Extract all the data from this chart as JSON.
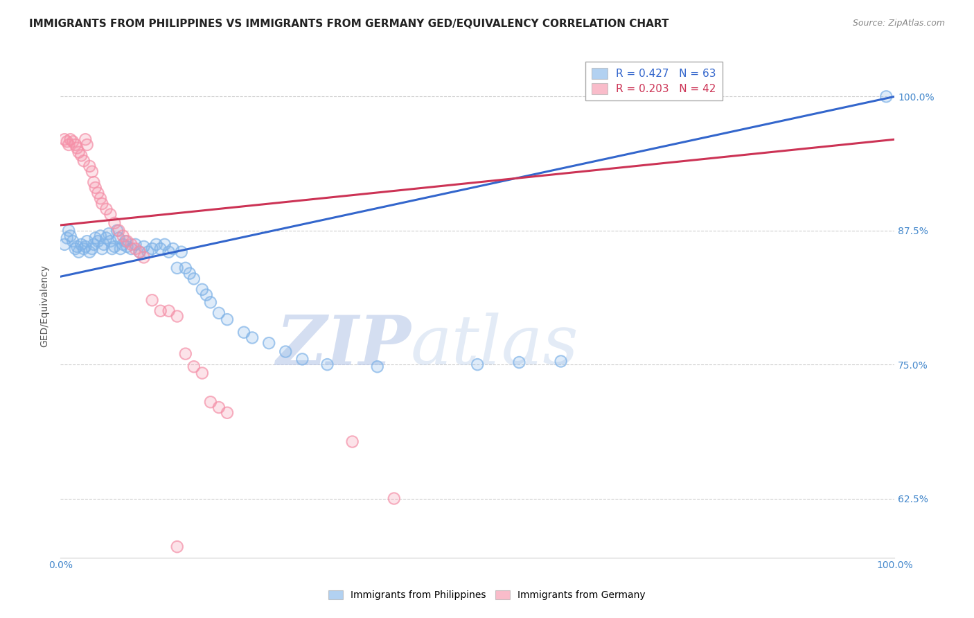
{
  "title": "IMMIGRANTS FROM PHILIPPINES VS IMMIGRANTS FROM GERMANY GED/EQUIVALENCY CORRELATION CHART",
  "source": "Source: ZipAtlas.com",
  "ylabel": "GED/Equivalency",
  "xlim": [
    0,
    1
  ],
  "ylim": [
    0.57,
    1.04
  ],
  "yticks": [
    0.625,
    0.75,
    0.875,
    1.0
  ],
  "ytick_labels": [
    "62.5%",
    "75.0%",
    "87.5%",
    "100.0%"
  ],
  "watermark_zip": "ZIP",
  "watermark_atlas": "atlas",
  "legend_blue_r": "R = 0.427",
  "legend_blue_n": "N = 63",
  "legend_pink_r": "R = 0.203",
  "legend_pink_n": "N = 42",
  "blue_color": "#7fb3e8",
  "pink_color": "#f590a8",
  "blue_line_color": "#3366cc",
  "pink_line_color": "#cc3355",
  "blue_scatter": [
    [
      0.005,
      0.862
    ],
    [
      0.008,
      0.868
    ],
    [
      0.01,
      0.875
    ],
    [
      0.012,
      0.87
    ],
    [
      0.015,
      0.865
    ],
    [
      0.018,
      0.858
    ],
    [
      0.02,
      0.86
    ],
    [
      0.022,
      0.855
    ],
    [
      0.025,
      0.862
    ],
    [
      0.028,
      0.858
    ],
    [
      0.03,
      0.86
    ],
    [
      0.032,
      0.865
    ],
    [
      0.035,
      0.855
    ],
    [
      0.038,
      0.858
    ],
    [
      0.04,
      0.862
    ],
    [
      0.042,
      0.868
    ],
    [
      0.045,
      0.865
    ],
    [
      0.048,
      0.87
    ],
    [
      0.05,
      0.858
    ],
    [
      0.052,
      0.862
    ],
    [
      0.055,
      0.868
    ],
    [
      0.058,
      0.872
    ],
    [
      0.06,
      0.865
    ],
    [
      0.062,
      0.858
    ],
    [
      0.065,
      0.86
    ],
    [
      0.068,
      0.875
    ],
    [
      0.07,
      0.868
    ],
    [
      0.072,
      0.858
    ],
    [
      0.075,
      0.862
    ],
    [
      0.078,
      0.865
    ],
    [
      0.08,
      0.86
    ],
    [
      0.085,
      0.858
    ],
    [
      0.09,
      0.862
    ],
    [
      0.095,
      0.855
    ],
    [
      0.1,
      0.86
    ],
    [
      0.105,
      0.855
    ],
    [
      0.11,
      0.858
    ],
    [
      0.115,
      0.862
    ],
    [
      0.12,
      0.858
    ],
    [
      0.125,
      0.862
    ],
    [
      0.13,
      0.855
    ],
    [
      0.135,
      0.858
    ],
    [
      0.14,
      0.84
    ],
    [
      0.145,
      0.855
    ],
    [
      0.15,
      0.84
    ],
    [
      0.155,
      0.835
    ],
    [
      0.16,
      0.83
    ],
    [
      0.17,
      0.82
    ],
    [
      0.175,
      0.815
    ],
    [
      0.18,
      0.808
    ],
    [
      0.19,
      0.798
    ],
    [
      0.2,
      0.792
    ],
    [
      0.22,
      0.78
    ],
    [
      0.23,
      0.775
    ],
    [
      0.25,
      0.77
    ],
    [
      0.27,
      0.762
    ],
    [
      0.29,
      0.755
    ],
    [
      0.32,
      0.75
    ],
    [
      0.38,
      0.748
    ],
    [
      0.5,
      0.75
    ],
    [
      0.55,
      0.752
    ],
    [
      0.6,
      0.753
    ],
    [
      0.99,
      1.0
    ]
  ],
  "pink_scatter": [
    [
      0.005,
      0.96
    ],
    [
      0.008,
      0.958
    ],
    [
      0.01,
      0.955
    ],
    [
      0.012,
      0.96
    ],
    [
      0.015,
      0.958
    ],
    [
      0.018,
      0.955
    ],
    [
      0.02,
      0.952
    ],
    [
      0.022,
      0.948
    ],
    [
      0.025,
      0.945
    ],
    [
      0.028,
      0.94
    ],
    [
      0.03,
      0.96
    ],
    [
      0.032,
      0.955
    ],
    [
      0.035,
      0.935
    ],
    [
      0.038,
      0.93
    ],
    [
      0.04,
      0.92
    ],
    [
      0.042,
      0.915
    ],
    [
      0.045,
      0.91
    ],
    [
      0.048,
      0.905
    ],
    [
      0.05,
      0.9
    ],
    [
      0.055,
      0.895
    ],
    [
      0.06,
      0.89
    ],
    [
      0.065,
      0.882
    ],
    [
      0.07,
      0.875
    ],
    [
      0.075,
      0.87
    ],
    [
      0.08,
      0.865
    ],
    [
      0.085,
      0.862
    ],
    [
      0.09,
      0.858
    ],
    [
      0.095,
      0.855
    ],
    [
      0.1,
      0.85
    ],
    [
      0.11,
      0.81
    ],
    [
      0.12,
      0.8
    ],
    [
      0.13,
      0.8
    ],
    [
      0.14,
      0.795
    ],
    [
      0.15,
      0.76
    ],
    [
      0.16,
      0.748
    ],
    [
      0.17,
      0.742
    ],
    [
      0.18,
      0.715
    ],
    [
      0.19,
      0.71
    ],
    [
      0.2,
      0.705
    ],
    [
      0.35,
      0.678
    ],
    [
      0.4,
      0.625
    ],
    [
      0.14,
      0.58
    ]
  ],
  "blue_line_y_start": 0.832,
  "blue_line_y_end": 1.0,
  "pink_line_y_start": 0.88,
  "pink_line_y_end": 0.96,
  "background_color": "#ffffff",
  "grid_color": "#cccccc",
  "title_fontsize": 11,
  "axis_label_fontsize": 10,
  "tick_fontsize": 10,
  "legend_fontsize": 11
}
